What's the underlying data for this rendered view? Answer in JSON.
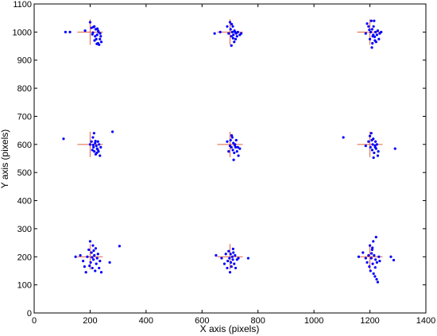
{
  "chart_data": {
    "type": "scatter",
    "title": "",
    "xlabel": "X axis (pixels)",
    "ylabel": "Y axis (pixels)",
    "xlim": [
      0,
      1400
    ],
    "ylim": [
      0,
      1100
    ],
    "xticks": [
      0,
      200,
      400,
      600,
      800,
      1000,
      1200,
      1400
    ],
    "yticks": [
      0,
      100,
      200,
      300,
      400,
      500,
      600,
      700,
      800,
      900,
      1000,
      1100
    ],
    "grid": false,
    "legend": "none",
    "colors": {
      "points": "#0000ff",
      "markers": "#e06040",
      "axes": "#000000"
    },
    "targets": [
      {
        "x": 200,
        "y": 1000
      },
      {
        "x": 700,
        "y": 1000
      },
      {
        "x": 1200,
        "y": 1000
      },
      {
        "x": 200,
        "y": 600
      },
      {
        "x": 700,
        "y": 600
      },
      {
        "x": 1200,
        "y": 600
      },
      {
        "x": 200,
        "y": 200
      },
      {
        "x": 700,
        "y": 200
      },
      {
        "x": 1200,
        "y": 200
      }
    ],
    "points": [
      [
        112,
        1000
      ],
      [
        128,
        1000
      ],
      [
        182,
        1005
      ],
      [
        200,
        1035
      ],
      [
        205,
        1015
      ],
      [
        210,
        998
      ],
      [
        215,
        1020
      ],
      [
        218,
        985
      ],
      [
        220,
        1010
      ],
      [
        222,
        975
      ],
      [
        225,
        990
      ],
      [
        228,
        960
      ],
      [
        230,
        1000
      ],
      [
        232,
        955
      ],
      [
        235,
        975
      ],
      [
        238,
        985
      ],
      [
        240,
        965
      ],
      [
        212,
        1018
      ],
      [
        208,
        992
      ],
      [
        226,
        1012
      ],
      [
        216,
        970
      ],
      [
        224,
        958
      ],
      [
        236,
        995
      ],
      [
        229,
        1004
      ],
      [
        645,
        995
      ],
      [
        665,
        1000
      ],
      [
        690,
        1020
      ],
      [
        695,
        995
      ],
      [
        700,
        1035
      ],
      [
        702,
        1010
      ],
      [
        705,
        985
      ],
      [
        708,
        1000
      ],
      [
        710,
        1020
      ],
      [
        712,
        990
      ],
      [
        715,
        965
      ],
      [
        718,
        1000
      ],
      [
        720,
        975
      ],
      [
        722,
        995
      ],
      [
        725,
        985
      ],
      [
        728,
        1000
      ],
      [
        735,
        990
      ],
      [
        740,
        995
      ],
      [
        705,
        952
      ],
      [
        716,
        1005
      ],
      [
        711,
        978
      ],
      [
        706,
        1028
      ],
      [
        1185,
        995
      ],
      [
        1190,
        1030
      ],
      [
        1195,
        1020
      ],
      [
        1200,
        975
      ],
      [
        1203,
        1000
      ],
      [
        1205,
        1040
      ],
      [
        1208,
        1010
      ],
      [
        1210,
        985
      ],
      [
        1212,
        990
      ],
      [
        1215,
        1040
      ],
      [
        1218,
        970
      ],
      [
        1220,
        1000
      ],
      [
        1222,
        965
      ],
      [
        1225,
        990
      ],
      [
        1228,
        1005
      ],
      [
        1232,
        975
      ],
      [
        1235,
        995
      ],
      [
        1240,
        1000
      ],
      [
        1207,
        945
      ],
      [
        1213,
        1020
      ],
      [
        1217,
        983
      ],
      [
        1198,
        1008
      ],
      [
        1209,
        960
      ],
      [
        105,
        620
      ],
      [
        200,
        600
      ],
      [
        205,
        610
      ],
      [
        208,
        580
      ],
      [
        210,
        625
      ],
      [
        212,
        590
      ],
      [
        215,
        575
      ],
      [
        218,
        605
      ],
      [
        220,
        565
      ],
      [
        222,
        595
      ],
      [
        225,
        585
      ],
      [
        228,
        610
      ],
      [
        230,
        575
      ],
      [
        232,
        600
      ],
      [
        235,
        560
      ],
      [
        238,
        590
      ],
      [
        280,
        645
      ],
      [
        214,
        640
      ],
      [
        224,
        570
      ],
      [
        219,
        612
      ],
      [
        211,
        598
      ],
      [
        227,
        582
      ],
      [
        690,
        610
      ],
      [
        695,
        575
      ],
      [
        700,
        595
      ],
      [
        702,
        615
      ],
      [
        705,
        590
      ],
      [
        708,
        625
      ],
      [
        710,
        580
      ],
      [
        712,
        605
      ],
      [
        715,
        570
      ],
      [
        718,
        600
      ],
      [
        720,
        590
      ],
      [
        722,
        615
      ],
      [
        725,
        575
      ],
      [
        728,
        590
      ],
      [
        730,
        560
      ],
      [
        735,
        585
      ],
      [
        713,
        545
      ],
      [
        706,
        632
      ],
      [
        717,
        597
      ],
      [
        1105,
        625
      ],
      [
        1185,
        595
      ],
      [
        1195,
        610
      ],
      [
        1200,
        630
      ],
      [
        1202,
        590
      ],
      [
        1205,
        640
      ],
      [
        1208,
        580
      ],
      [
        1210,
        600
      ],
      [
        1212,
        620
      ],
      [
        1215,
        570
      ],
      [
        1218,
        595
      ],
      [
        1220,
        610
      ],
      [
        1222,
        585
      ],
      [
        1225,
        600
      ],
      [
        1228,
        560
      ],
      [
        1230,
        575
      ],
      [
        1290,
        585
      ],
      [
        1213,
        553
      ],
      [
        1207,
        615
      ],
      [
        1219,
        590
      ],
      [
        148,
        200
      ],
      [
        165,
        205
      ],
      [
        175,
        185
      ],
      [
        180,
        165
      ],
      [
        185,
        145
      ],
      [
        190,
        200
      ],
      [
        195,
        225
      ],
      [
        200,
        255
      ],
      [
        202,
        180
      ],
      [
        205,
        215
      ],
      [
        208,
        160
      ],
      [
        210,
        240
      ],
      [
        212,
        190
      ],
      [
        215,
        205
      ],
      [
        218,
        150
      ],
      [
        220,
        230
      ],
      [
        222,
        175
      ],
      [
        225,
        195
      ],
      [
        228,
        210
      ],
      [
        232,
        160
      ],
      [
        235,
        185
      ],
      [
        240,
        145
      ],
      [
        270,
        180
      ],
      [
        305,
        238
      ],
      [
        198,
        168
      ],
      [
        213,
        222
      ],
      [
        207,
        198
      ],
      [
        650,
        205
      ],
      [
        670,
        195
      ],
      [
        680,
        175
      ],
      [
        685,
        210
      ],
      [
        690,
        160
      ],
      [
        692,
        185
      ],
      [
        695,
        220
      ],
      [
        698,
        195
      ],
      [
        700,
        145
      ],
      [
        702,
        210
      ],
      [
        705,
        165
      ],
      [
        708,
        200
      ],
      [
        710,
        190
      ],
      [
        712,
        215
      ],
      [
        715,
        175
      ],
      [
        718,
        205
      ],
      [
        720,
        160
      ],
      [
        725,
        190
      ],
      [
        730,
        195
      ],
      [
        765,
        195
      ],
      [
        703,
        180
      ],
      [
        711,
        228
      ],
      [
        1160,
        200
      ],
      [
        1175,
        215
      ],
      [
        1185,
        195
      ],
      [
        1190,
        180
      ],
      [
        1195,
        205
      ],
      [
        1198,
        165
      ],
      [
        1200,
        240
      ],
      [
        1202,
        150
      ],
      [
        1205,
        195
      ],
      [
        1208,
        225
      ],
      [
        1210,
        175
      ],
      [
        1212,
        255
      ],
      [
        1215,
        205
      ],
      [
        1218,
        130
      ],
      [
        1220,
        190
      ],
      [
        1222,
        270
      ],
      [
        1225,
        180
      ],
      [
        1228,
        110
      ],
      [
        1232,
        200
      ],
      [
        1235,
        185
      ],
      [
        1275,
        200
      ],
      [
        1285,
        188
      ],
      [
        1213,
        140
      ],
      [
        1206,
        212
      ],
      [
        1219,
        162
      ],
      [
        1224,
        120
      ],
      [
        1209,
        232
      ]
    ]
  }
}
